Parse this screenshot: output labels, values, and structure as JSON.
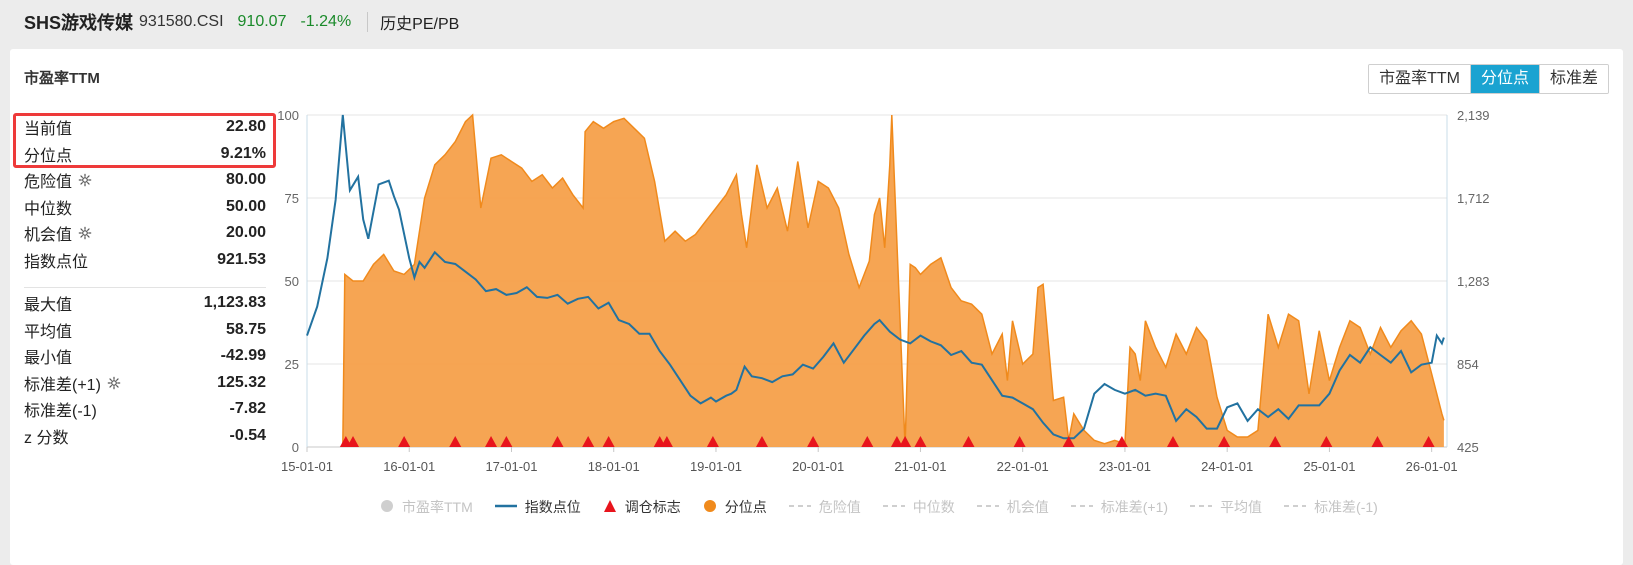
{
  "header": {
    "name": "SHS游戏传媒",
    "code": "931580.CSI",
    "price": "910.07",
    "change": "-1.24%",
    "history_link": "历史PE/PB"
  },
  "panel": {
    "title": "市盈率TTM",
    "modes": [
      "市盈率TTM",
      "分位点",
      "标准差"
    ],
    "active_mode": "分位点"
  },
  "stats_top": [
    {
      "label": "当前值",
      "value": "22.80",
      "gear": false
    },
    {
      "label": "分位点",
      "value": "9.21%",
      "gear": false
    },
    {
      "label": "危险值",
      "value": "80.00",
      "gear": true
    },
    {
      "label": "中位数",
      "value": "50.00",
      "gear": false
    },
    {
      "label": "机会值",
      "value": "20.00",
      "gear": true
    },
    {
      "label": "指数点位",
      "value": "921.53",
      "gear": false
    }
  ],
  "stats_bottom": [
    {
      "label": "最大值",
      "value": "1,123.83",
      "gear": false
    },
    {
      "label": "平均值",
      "value": "58.75",
      "gear": false
    },
    {
      "label": "最小值",
      "value": "-42.99",
      "gear": false
    },
    {
      "label": "标准差(+1)",
      "value": "125.32",
      "gear": true
    },
    {
      "label": "标准差(-1)",
      "value": "-7.82",
      "gear": false
    },
    {
      "label": "z 分数",
      "value": "-0.54",
      "gear": false
    }
  ],
  "colors": {
    "percentile_fill": "#f5a04a",
    "percentile_line": "#f08a1c",
    "index_line": "#2272a0",
    "marker": "#e8141c",
    "highlight": "#ee3a3a",
    "accent": "#1aa3d1"
  },
  "chart_data": {
    "type": "area",
    "left_axis": {
      "ticks": [
        "100",
        "75",
        "50",
        "25",
        "0"
      ],
      "range": [
        0,
        100
      ]
    },
    "right_axis": {
      "ticks": [
        "2,139",
        "1,712",
        "1,283",
        "854",
        "425"
      ],
      "range": [
        425,
        2139
      ]
    },
    "x_ticks": [
      "15-01-01",
      "16-01-01",
      "17-01-01",
      "18-01-01",
      "19-01-01",
      "20-01-01",
      "21-01-01",
      "22-01-01",
      "23-01-01",
      "24-01-01",
      "25-01-01",
      "26-01-01"
    ],
    "grid": true,
    "legend": [
      "市盈率TTM",
      "指数点位",
      "调仓标志",
      "分位点",
      "危险值",
      "中位数",
      "机会值",
      "标准差(+1)",
      "平均值",
      "标准差(-1)"
    ],
    "legend_active": [
      "指数点位",
      "调仓标志",
      "分位点"
    ],
    "series": [
      {
        "name": "分位点",
        "axis": "left",
        "x": [
          2015.35,
          2015.37,
          2015.45,
          2015.55,
          2015.65,
          2015.75,
          2015.85,
          2015.95,
          2016.05,
          2016.15,
          2016.25,
          2016.35,
          2016.45,
          2016.55,
          2016.62,
          2016.7,
          2016.8,
          2016.9,
          2017.0,
          2017.1,
          2017.2,
          2017.3,
          2017.4,
          2017.5,
          2017.6,
          2017.7,
          2017.72,
          2017.8,
          2017.9,
          2018.0,
          2018.1,
          2018.2,
          2018.3,
          2018.4,
          2018.5,
          2018.6,
          2018.7,
          2018.8,
          2018.9,
          2019.0,
          2019.1,
          2019.2,
          2019.25,
          2019.3,
          2019.4,
          2019.5,
          2019.6,
          2019.7,
          2019.8,
          2019.9,
          2020.0,
          2020.1,
          2020.2,
          2020.3,
          2020.4,
          2020.45,
          2020.5,
          2020.55,
          2020.6,
          2020.65,
          2020.7,
          2020.72,
          2020.85,
          2020.9,
          2020.95,
          2021.0,
          2021.1,
          2021.2,
          2021.3,
          2021.4,
          2021.5,
          2021.6,
          2021.7,
          2021.8,
          2021.85,
          2021.9,
          2022.0,
          2022.1,
          2022.15,
          2022.2,
          2022.3,
          2022.4,
          2022.45,
          2022.5,
          2022.6,
          2022.7,
          2022.8,
          2022.9,
          2023.0,
          2023.05,
          2023.1,
          2023.15,
          2023.2,
          2023.3,
          2023.4,
          2023.5,
          2023.6,
          2023.7,
          2023.8,
          2023.9,
          2024.0,
          2024.1,
          2024.2,
          2024.3,
          2024.4,
          2024.5,
          2024.6,
          2024.7,
          2024.8,
          2024.9,
          2025.0,
          2025.1,
          2025.2,
          2025.3,
          2025.4,
          2025.5,
          2025.6,
          2025.7,
          2025.8,
          2025.9,
          2026.0,
          2026.1,
          2026.12
        ],
        "values": [
          0,
          52,
          50,
          50,
          55,
          58,
          53,
          52,
          55,
          75,
          85,
          88,
          92,
          98,
          100,
          72,
          87,
          88,
          86,
          84,
          80,
          82,
          78,
          81,
          76,
          72,
          95,
          98,
          96,
          98,
          99,
          96,
          93,
          80,
          62,
          65,
          62,
          64,
          68,
          72,
          76,
          82,
          70,
          60,
          85,
          72,
          78,
          65,
          86,
          66,
          80,
          78,
          72,
          58,
          48,
          52,
          56,
          70,
          75,
          60,
          85,
          100,
          0,
          55,
          54,
          52,
          55,
          57,
          48,
          44,
          43,
          40,
          28,
          34,
          20,
          38,
          25,
          28,
          48,
          49,
          14,
          15,
          2,
          10,
          5,
          2,
          1,
          2,
          1,
          30,
          28,
          20,
          38,
          30,
          24,
          34,
          28,
          36,
          32,
          15,
          5,
          3,
          3,
          5,
          40,
          30,
          40,
          38,
          16,
          35,
          20,
          30,
          38,
          36,
          28,
          36,
          30,
          35,
          38,
          34,
          22,
          10,
          8
        ]
      },
      {
        "name": "指数点位",
        "axis": "right",
        "x": [
          2015.0,
          2015.1,
          2015.2,
          2015.28,
          2015.35,
          2015.42,
          2015.5,
          2015.55,
          2015.6,
          2015.7,
          2015.8,
          2015.85,
          2015.9,
          2016.0,
          2016.05,
          2016.1,
          2016.15,
          2016.25,
          2016.35,
          2016.45,
          2016.55,
          2016.65,
          2016.75,
          2016.85,
          2016.95,
          2017.05,
          2017.15,
          2017.25,
          2017.35,
          2017.45,
          2017.55,
          2017.65,
          2017.75,
          2017.85,
          2017.95,
          2018.05,
          2018.15,
          2018.25,
          2018.35,
          2018.45,
          2018.55,
          2018.65,
          2018.75,
          2018.85,
          2018.95,
          2019.0,
          2019.1,
          2019.15,
          2019.2,
          2019.28,
          2019.35,
          2019.45,
          2019.55,
          2019.65,
          2019.75,
          2019.85,
          2019.95,
          2020.05,
          2020.15,
          2020.25,
          2020.35,
          2020.45,
          2020.55,
          2020.6,
          2020.7,
          2020.8,
          2020.9,
          2021.0,
          2021.1,
          2021.2,
          2021.3,
          2021.4,
          2021.5,
          2021.6,
          2021.7,
          2021.8,
          2021.9,
          2022.0,
          2022.1,
          2022.2,
          2022.3,
          2022.4,
          2022.5,
          2022.6,
          2022.7,
          2022.8,
          2022.9,
          2023.0,
          2023.1,
          2023.2,
          2023.3,
          2023.4,
          2023.5,
          2023.6,
          2023.7,
          2023.8,
          2023.9,
          2024.0,
          2024.1,
          2024.2,
          2024.3,
          2024.4,
          2024.5,
          2024.6,
          2024.7,
          2024.8,
          2024.9,
          2025.0,
          2025.1,
          2025.2,
          2025.3,
          2025.4,
          2025.5,
          2025.6,
          2025.7,
          2025.8,
          2025.9,
          2026.0,
          2026.05,
          2026.1,
          2026.12
        ],
        "values": [
          1000,
          1150,
          1400,
          1700,
          2139,
          1750,
          1820,
          1600,
          1500,
          1780,
          1800,
          1720,
          1650,
          1400,
          1300,
          1380,
          1350,
          1430,
          1380,
          1370,
          1330,
          1290,
          1230,
          1240,
          1210,
          1220,
          1250,
          1200,
          1195,
          1210,
          1165,
          1190,
          1200,
          1140,
          1170,
          1080,
          1060,
          1010,
          1010,
          920,
          850,
          770,
          690,
          650,
          680,
          660,
          690,
          700,
          720,
          840,
          790,
          780,
          760,
          790,
          800,
          850,
          830,
          890,
          960,
          860,
          930,
          1000,
          1060,
          1080,
          1020,
          980,
          960,
          1000,
          970,
          950,
          900,
          920,
          860,
          850,
          770,
          690,
          680,
          650,
          620,
          550,
          490,
          470,
          470,
          520,
          700,
          750,
          720,
          700,
          720,
          690,
          700,
          690,
          560,
          620,
          580,
          520,
          520,
          630,
          650,
          560,
          620,
          580,
          620,
          570,
          640,
          640,
          640,
          700,
          820,
          900,
          860,
          940,
          900,
          860,
          920,
          810,
          850,
          860,
          1000,
          960,
          990
        ]
      }
    ],
    "rebalance_markers_x": [
      2015.38,
      2015.45,
      2015.95,
      2016.45,
      2016.8,
      2016.95,
      2017.45,
      2017.75,
      2017.95,
      2018.45,
      2018.52,
      2018.97,
      2019.45,
      2019.95,
      2020.48,
      2020.77,
      2020.85,
      2021.0,
      2021.47,
      2021.97,
      2022.45,
      2022.97,
      2023.47,
      2023.97,
      2024.47,
      2024.97,
      2025.47,
      2025.97
    ]
  }
}
